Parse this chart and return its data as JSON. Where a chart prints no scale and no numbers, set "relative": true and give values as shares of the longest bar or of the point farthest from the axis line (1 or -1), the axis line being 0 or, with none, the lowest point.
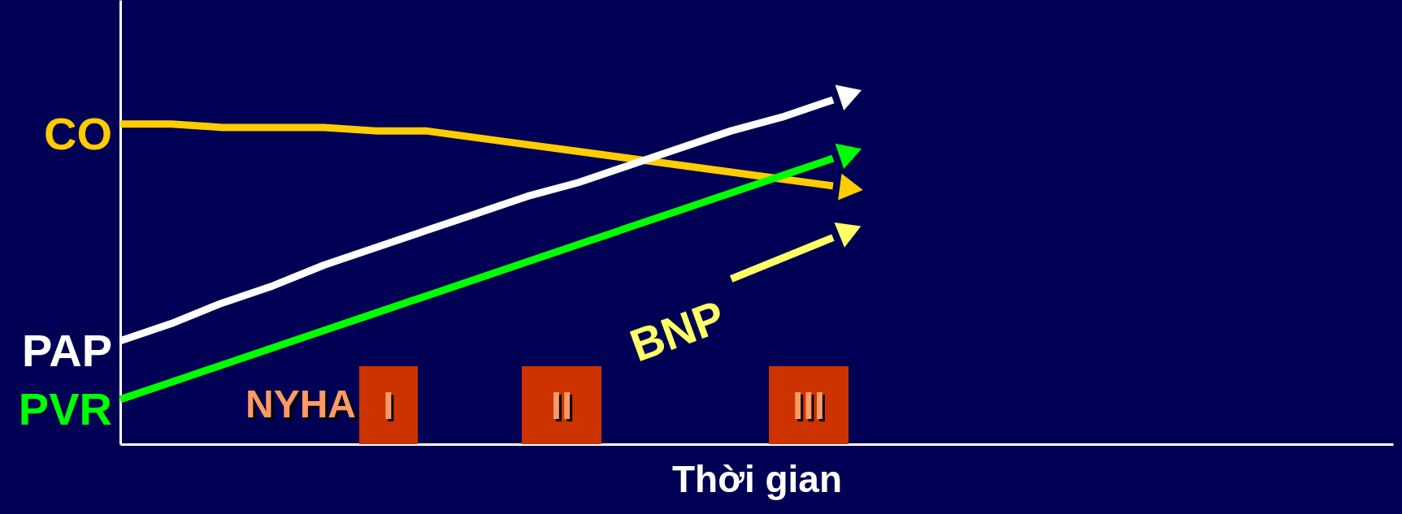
{
  "chart_data": {
    "type": "line",
    "relative": true,
    "xlabel": "Thời  gian",
    "tick_labels": false,
    "categories": [
      null,
      null,
      null,
      null,
      null,
      null,
      null,
      null,
      null,
      null,
      null,
      null,
      null,
      null,
      null,
      null,
      null,
      null,
      null,
      null,
      null,
      null,
      null,
      null,
      null
    ],
    "series": [
      {
        "name": "CO",
        "color": "#ffcc00",
        "values": [
          0.93,
          0.93,
          0.92,
          0.92,
          0.92,
          0.91,
          0.91,
          0.89,
          0.87,
          0.85,
          0.83,
          0.81,
          0.79,
          0.77,
          0.75,
          null,
          null,
          null,
          null,
          null,
          null,
          null,
          null,
          null,
          null
        ]
      },
      {
        "name": "PAP",
        "color": "#ffffff",
        "values": [
          0.3,
          0.35,
          0.41,
          0.46,
          0.52,
          0.57,
          0.62,
          0.67,
          0.72,
          0.76,
          0.81,
          0.86,
          0.91,
          0.95,
          1,
          null,
          null,
          null,
          null,
          null,
          null,
          null,
          null,
          null,
          null
        ]
      },
      {
        "name": "PVR",
        "color": "#00ff00",
        "values": [
          0.13,
          0.18,
          0.23,
          0.28,
          0.33,
          0.38,
          0.43,
          0.48,
          0.53,
          0.58,
          0.63,
          0.68,
          0.73,
          0.78,
          0.83,
          null,
          null,
          null,
          null,
          null,
          null,
          null,
          null,
          null,
          null
        ]
      },
      {
        "name": "BNP",
        "color": "#ffff66",
        "values": [
          null,
          null,
          null,
          null,
          null,
          null,
          null,
          null,
          null,
          null,
          null,
          null,
          0.48,
          0.54,
          0.6,
          null,
          null,
          null,
          null,
          null,
          null,
          null,
          null,
          null,
          null
        ]
      }
    ],
    "annotations": [
      "NYHA",
      "I",
      "II",
      "III"
    ]
  }
}
